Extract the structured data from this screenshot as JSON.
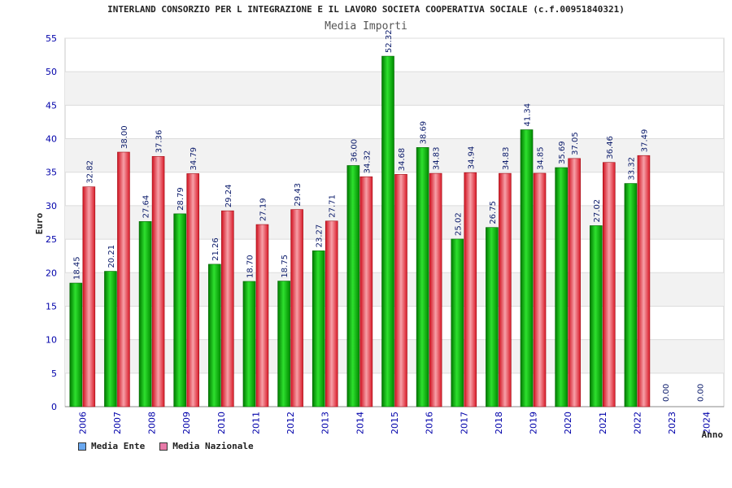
{
  "chart_data": {
    "type": "bar",
    "title": "INTERLAND CONSORZIO PER L INTEGRAZIONE E IL LAVORO SOCIETA COOPERATIVA SOCIALE (c.f.00951840321)",
    "subtitle": "Media Importi",
    "xlabel": "Anno",
    "ylabel": "Euro",
    "ylim": [
      0,
      55
    ],
    "yticks": [
      0,
      5,
      10,
      15,
      20,
      25,
      30,
      35,
      40,
      45,
      50,
      55
    ],
    "grid": true,
    "legend_position": "bottom-left",
    "categories": [
      "2006",
      "2007",
      "2008",
      "2009",
      "2010",
      "2011",
      "2012",
      "2013",
      "2014",
      "2015",
      "2016",
      "2017",
      "2018",
      "2019",
      "2020",
      "2021",
      "2022",
      "2023",
      "2024"
    ],
    "series": [
      {
        "name": "Media Ente",
        "color": "#00b000",
        "legend_color": "#6aa8f0",
        "values": [
          18.45,
          20.21,
          27.64,
          28.79,
          21.26,
          18.7,
          18.75,
          23.27,
          36.0,
          52.32,
          38.69,
          25.02,
          26.75,
          41.34,
          35.69,
          27.02,
          33.32,
          0.0,
          0.0
        ],
        "labels": [
          "18.45",
          "20.21",
          "27.64",
          "28.79",
          "21.26",
          "18.70",
          "18.75",
          "23.27",
          "36.00",
          "52.32",
          "38.69",
          "25.02",
          "26.75",
          "41.34",
          "35.69",
          "27.02",
          "33.32",
          "0.00",
          "0.00"
        ]
      },
      {
        "name": "Media Nazionale",
        "color": "#ee2030",
        "legend_color": "#e87aa8",
        "values": [
          32.82,
          38.0,
          37.36,
          34.79,
          29.24,
          27.19,
          29.43,
          27.71,
          34.32,
          34.68,
          34.83,
          34.94,
          34.83,
          34.85,
          37.05,
          36.46,
          37.49,
          null,
          null
        ],
        "labels": [
          "32.82",
          "38.00",
          "37.36",
          "34.79",
          "29.24",
          "27.19",
          "29.43",
          "27.71",
          "34.32",
          "34.68",
          "34.83",
          "34.94",
          "34.83",
          "34.85",
          "37.05",
          "36.46",
          "37.49",
          null,
          null
        ]
      }
    ]
  }
}
